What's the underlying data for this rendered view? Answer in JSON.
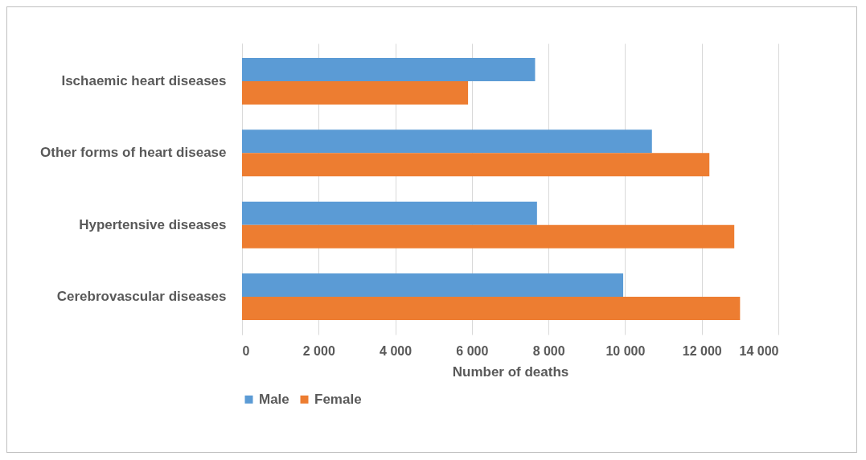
{
  "chart_data": {
    "type": "bar",
    "orientation": "horizontal",
    "xlabel": "Number of deaths",
    "categories": [
      "Ischaemic heart diseases",
      "Other forms of heart disease",
      "Hypertensive diseases",
      "Cerebrovascular diseases"
    ],
    "series": [
      {
        "name": "Male",
        "color": "#5b9bd5",
        "values": [
          7650,
          10700,
          7700,
          9950
        ]
      },
      {
        "name": "Female",
        "color": "#ed7d31",
        "values": [
          5900,
          12200,
          12850,
          13000
        ]
      }
    ],
    "xlim": [
      0,
      14000
    ],
    "xticks": [
      0,
      {
        "value": 2000,
        "label": "2 000"
      },
      {
        "value": 4000,
        "label": "4 000"
      },
      {
        "value": 6000,
        "label": "6 000"
      },
      {
        "value": 8000,
        "label": "8 000"
      },
      {
        "value": 10000,
        "label": "10 000"
      },
      {
        "value": 12000,
        "label": "12 000"
      },
      {
        "value": 14000,
        "label": "14 000"
      }
    ],
    "grid": "x",
    "legend": "bottom"
  }
}
